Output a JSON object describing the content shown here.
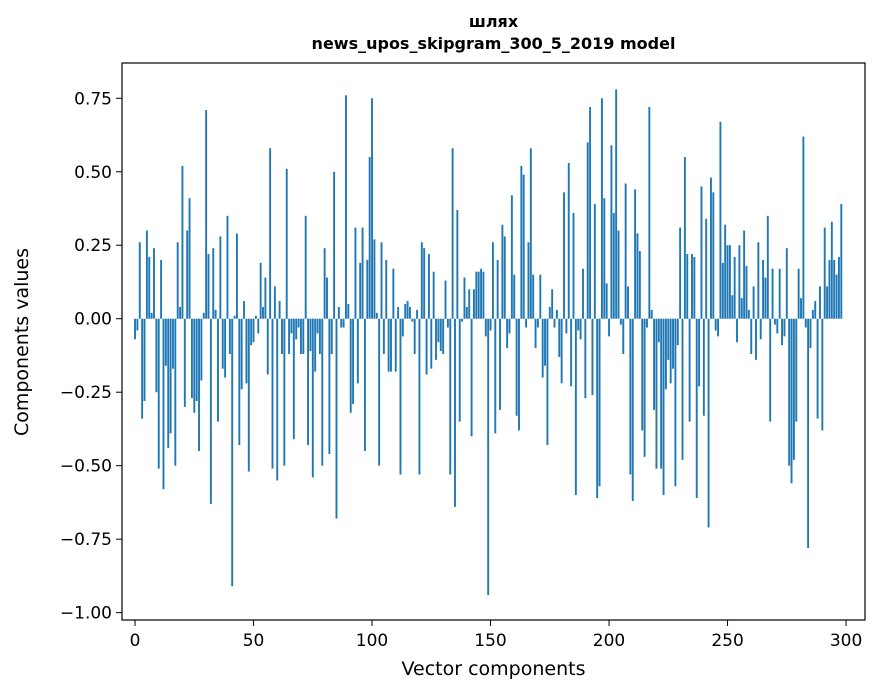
{
  "chart_data": {
    "type": "bar",
    "title": "шлях",
    "subtitle": "news_upos_skipgram_300_5_2019 model",
    "xlabel": "Vector components",
    "ylabel": "Components values",
    "xlim": [
      -5.5,
      308
    ],
    "ylim": [
      -1.025,
      0.87
    ],
    "xticks": [
      0,
      50,
      100,
      150,
      200,
      250,
      300
    ],
    "xtick_labels": [
      "0",
      "50",
      "100",
      "150",
      "200",
      "250",
      "300"
    ],
    "yticks": [
      0.75,
      0.5,
      0.25,
      0.0,
      -0.25,
      -0.5,
      -0.75,
      -1.0
    ],
    "ytick_labels": [
      "0.75",
      "0.50",
      "0.25",
      "0.00",
      "−0.25",
      "−0.50",
      "−0.75",
      "−1.00"
    ],
    "bar_color": "#1f77b4",
    "values": [
      -0.07,
      -0.04,
      0.26,
      -0.34,
      -0.28,
      0.3,
      0.21,
      0.02,
      0.24,
      -0.25,
      -0.51,
      0.2,
      -0.58,
      -0.16,
      -0.44,
      -0.39,
      -0.17,
      -0.5,
      0.26,
      0.04,
      0.52,
      -0.3,
      0.3,
      0.41,
      -0.27,
      -0.32,
      -0.28,
      -0.45,
      -0.21,
      0.02,
      0.71,
      0.22,
      -0.63,
      0.24,
      0.03,
      -0.35,
      0.28,
      -0.17,
      -0.2,
      0.35,
      -0.12,
      -0.91,
      0.01,
      0.29,
      -0.43,
      -0.24,
      0.06,
      -0.22,
      -0.52,
      -0.09,
      -0.08,
      0.01,
      -0.05,
      0.19,
      0.04,
      0.14,
      -0.19,
      0.58,
      -0.51,
      0.11,
      -0.55,
      0.06,
      -0.12,
      -0.5,
      0.51,
      -0.12,
      -0.05,
      -0.41,
      -0.07,
      -0.03,
      -0.12,
      -0.12,
      0.35,
      -0.43,
      -0.11,
      -0.54,
      -0.18,
      -0.05,
      -0.12,
      -0.5,
      0.24,
      0.14,
      -0.46,
      -0.12,
      0.5,
      -0.68,
      0.04,
      -0.03,
      -0.03,
      0.76,
      0.05,
      -0.32,
      -0.29,
      0.31,
      -0.22,
      0.19,
      0.31,
      -0.45,
      0.2,
      0.55,
      0.75,
      0.27,
      0.02,
      -0.5,
      0.26,
      -0.12,
      0.2,
      -0.18,
      -0.18,
      0.17,
      -0.18,
      0.04,
      -0.53,
      -0.06,
      0.05,
      0.06,
      0.04,
      -0.01,
      -0.12,
      0.03,
      -0.53,
      0.26,
      0.24,
      -0.19,
      0.22,
      -0.17,
      0.16,
      -0.14,
      -0.08,
      -0.11,
      -0.12,
      0.13,
      -0.03,
      -0.53,
      0.58,
      -0.64,
      0.37,
      -0.35,
      -0.01,
      0.14,
      0.04,
      0.1,
      -0.4,
      0.1,
      0.16,
      0.16,
      0.17,
      0.16,
      -0.06,
      -0.94,
      -0.04,
      0.26,
      -0.39,
      0.2,
      -0.31,
      0.32,
      0.28,
      -0.1,
      -0.05,
      0.42,
      0.15,
      -0.33,
      -0.38,
      0.52,
      0.49,
      -0.03,
      0.26,
      0.58,
      0.15,
      -0.1,
      -0.03,
      0.15,
      -0.2,
      -0.16,
      -0.43,
      0.04,
      0.1,
      -0.03,
      0.03,
      -0.13,
      -0.22,
      0.43,
      -0.05,
      0.53,
      -0.23,
      0.36,
      -0.6,
      -0.04,
      -0.07,
      0.17,
      -0.27,
      0.6,
      0.72,
      -0.26,
      0.39,
      -0.61,
      -0.57,
      0.75,
      0.41,
      0.12,
      -0.06,
      0.59,
      0.36,
      0.78,
      0.3,
      -0.02,
      -0.12,
      0.46,
      0.11,
      -0.53,
      -0.62,
      0.44,
      0.29,
      0.23,
      -0.38,
      -0.47,
      -0.03,
      0.72,
      0.03,
      -0.31,
      -0.51,
      -0.08,
      -0.51,
      -0.6,
      -0.24,
      -0.14,
      -0.22,
      -0.17,
      -0.57,
      -0.09,
      0.31,
      -0.48,
      0.55,
      0.22,
      -0.35,
      0.22,
      0.21,
      -0.61,
      -0.23,
      0.45,
      -0.33,
      0.34,
      -0.71,
      0.48,
      0.43,
      -0.04,
      -0.06,
      0.67,
      0.19,
      0.32,
      0.25,
      0.25,
      0.08,
      0.21,
      -0.08,
      0.25,
      0.07,
      0.3,
      0.18,
      0.03,
      -0.12,
      0.11,
      -0.14,
      0.26,
      -0.07,
      0.2,
      0.14,
      0.35,
      -0.35,
      0.17,
      -0.02,
      -0.05,
      0.17,
      -0.09,
      -0.06,
      0.24,
      -0.5,
      -0.56,
      -0.48,
      -0.35,
      0.17,
      0.07,
      0.62,
      -0.03,
      -0.78,
      -0.1,
      0.03,
      0.06,
      -0.34,
      0.11,
      -0.38,
      0.31,
      0.11,
      0.2,
      0.33,
      0.2,
      0.15,
      0.21,
      0.39
    ]
  }
}
